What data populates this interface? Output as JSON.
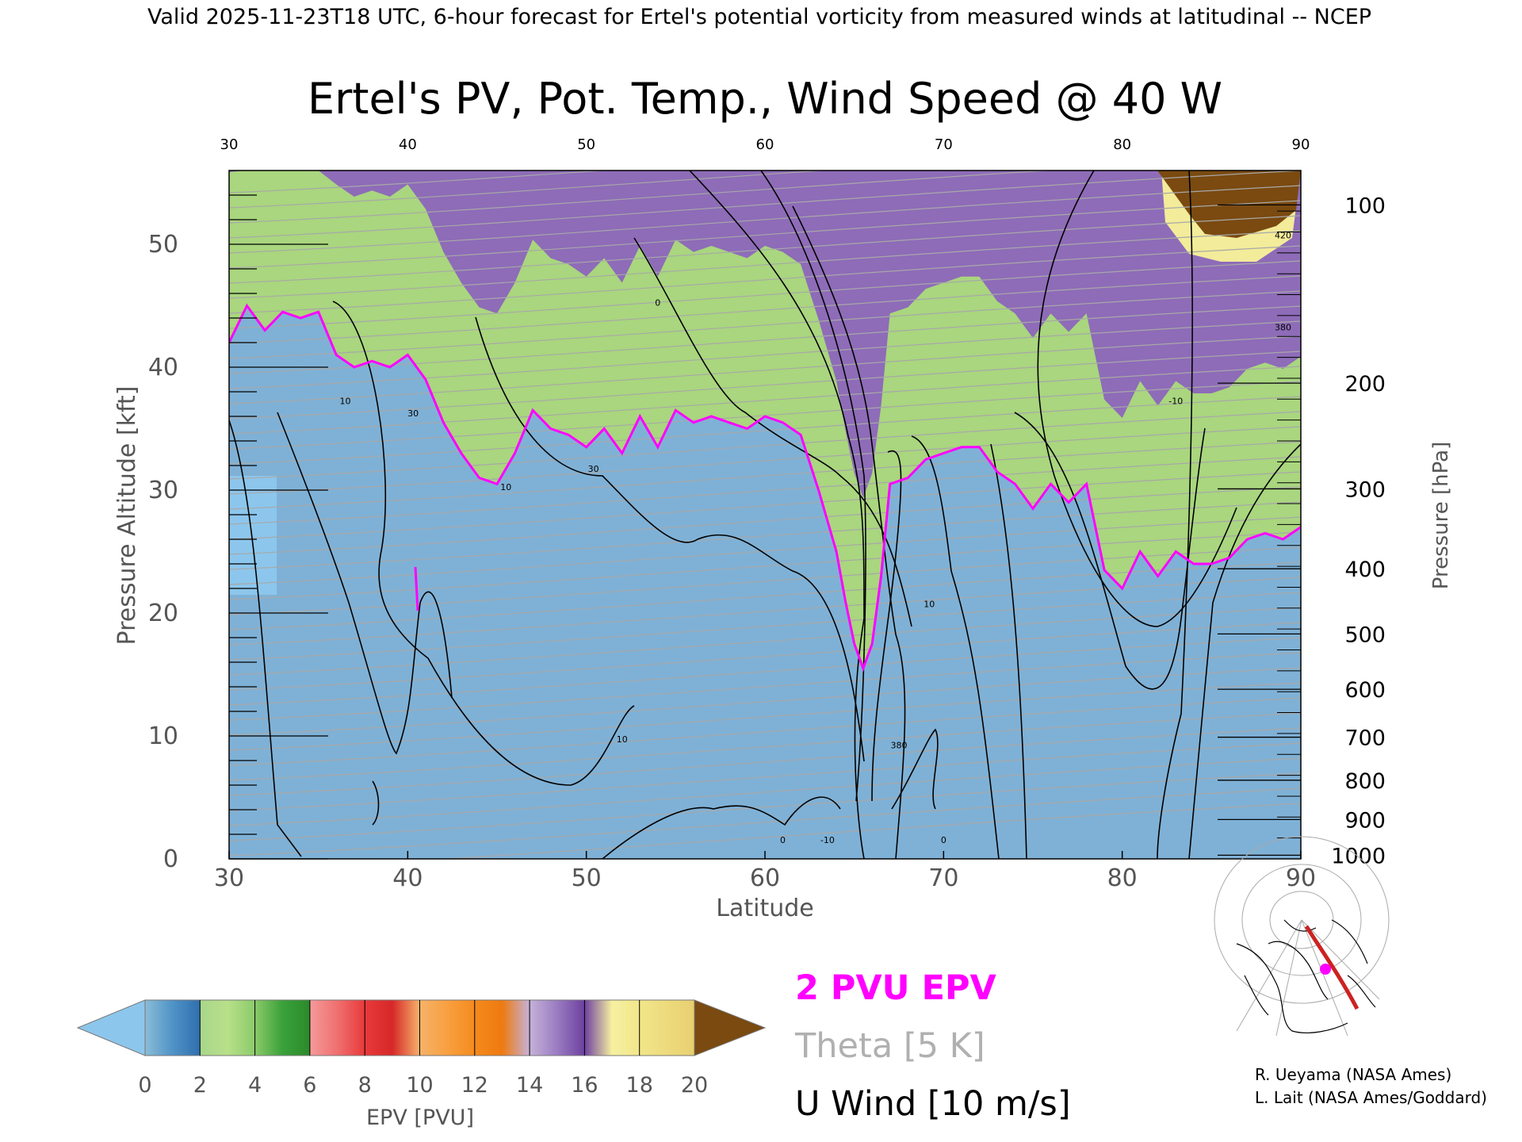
{
  "header": {
    "valid_line": "Valid 2025-11-23T18 UTC, 6-hour forecast for Ertel's potential vorticity from measured winds at latitudinal -- NCEP"
  },
  "chart_data": {
    "type": "heatmap",
    "title": "Ertel's PV, Pot. Temp., Wind Speed @ 40 W",
    "xlabel": "Latitude",
    "ylabel_left": "Pressure Altitude [kft]",
    "ylabel_right": "Pressure [hPa]",
    "xlim": [
      30,
      90
    ],
    "ylim": [
      0,
      56
    ],
    "x_ticks": [
      "30",
      "40",
      "50",
      "60",
      "70",
      "80",
      "90"
    ],
    "y_ticks_left": [
      {
        "value": 0,
        "label": "0"
      },
      {
        "value": 10,
        "label": "10"
      },
      {
        "value": 20,
        "label": "20"
      },
      {
        "value": 30,
        "label": "30"
      },
      {
        "value": 40,
        "label": "40"
      },
      {
        "value": 50,
        "label": "50"
      }
    ],
    "y_ticks_right": [
      {
        "kft": 0.3,
        "label": "1000"
      },
      {
        "kft": 3.2,
        "label": "900"
      },
      {
        "kft": 6.4,
        "label": "800"
      },
      {
        "kft": 9.9,
        "label": "700"
      },
      {
        "kft": 13.8,
        "label": "600"
      },
      {
        "kft": 18.3,
        "label": "500"
      },
      {
        "kft": 23.6,
        "label": "400"
      },
      {
        "kft": 30.1,
        "label": "300"
      },
      {
        "kft": 38.7,
        "label": "200"
      },
      {
        "kft": 53.2,
        "label": "100"
      }
    ],
    "pv_2pvu_line": {
      "lat": [
        30,
        31,
        32,
        33,
        34,
        35,
        36,
        37,
        38,
        39,
        40,
        41,
        42,
        43,
        44,
        45,
        46,
        47,
        48,
        49,
        50,
        51,
        52,
        53,
        54,
        55,
        56,
        57,
        58,
        59,
        60,
        61,
        62,
        63,
        64,
        64.5,
        65,
        65.5,
        66,
        66.5,
        67,
        68,
        69,
        70,
        71,
        72,
        73,
        74,
        75,
        76,
        77,
        78,
        79,
        80,
        81,
        82,
        83,
        84,
        85,
        86,
        87,
        88,
        89,
        90
      ],
      "kft": [
        42,
        45,
        43,
        44.5,
        44,
        44.5,
        41,
        40,
        40.5,
        40,
        41,
        39,
        35.5,
        33,
        31,
        30.5,
        33,
        36.5,
        35,
        34.5,
        33.5,
        35,
        33,
        36,
        33.5,
        36.5,
        35.5,
        36,
        35.5,
        35,
        36,
        35.5,
        34.5,
        30,
        25,
        21,
        17.5,
        15.5,
        17.5,
        23,
        30.5,
        31,
        32.5,
        33,
        33.5,
        33.5,
        31.5,
        30.5,
        28.5,
        30.5,
        29,
        30.5,
        23.5,
        22,
        25,
        23,
        25,
        24,
        24,
        24.5,
        26,
        26.5,
        26,
        27
      ]
    },
    "epv_colorbar": {
      "label": "EPV [PVU]",
      "ticks": [
        "0",
        "2",
        "4",
        "6",
        "8",
        "10",
        "12",
        "14",
        "16",
        "18",
        "20"
      ],
      "extend": "both"
    },
    "legend": [
      {
        "name": "2 PVU EPV",
        "color": "#ff00ff"
      },
      {
        "name": "Theta [5 K]",
        "color": "#b0b0b0"
      },
      {
        "name": "U Wind [10 m/s]",
        "color": "#000000"
      }
    ],
    "contour_labels": [
      "10",
      "10",
      "10",
      "10",
      "30",
      "30",
      "0",
      "0",
      "0",
      "-10",
      "-10",
      "380",
      "380",
      "420"
    ],
    "grid": false
  },
  "map_inset": {
    "section_color": "#cc2222",
    "marker_color": "#ff00ff"
  },
  "credits": {
    "line1": "R. Ueyama (NASA Ames)",
    "line2": "L. Lait (NASA Ames/Goddard)"
  }
}
